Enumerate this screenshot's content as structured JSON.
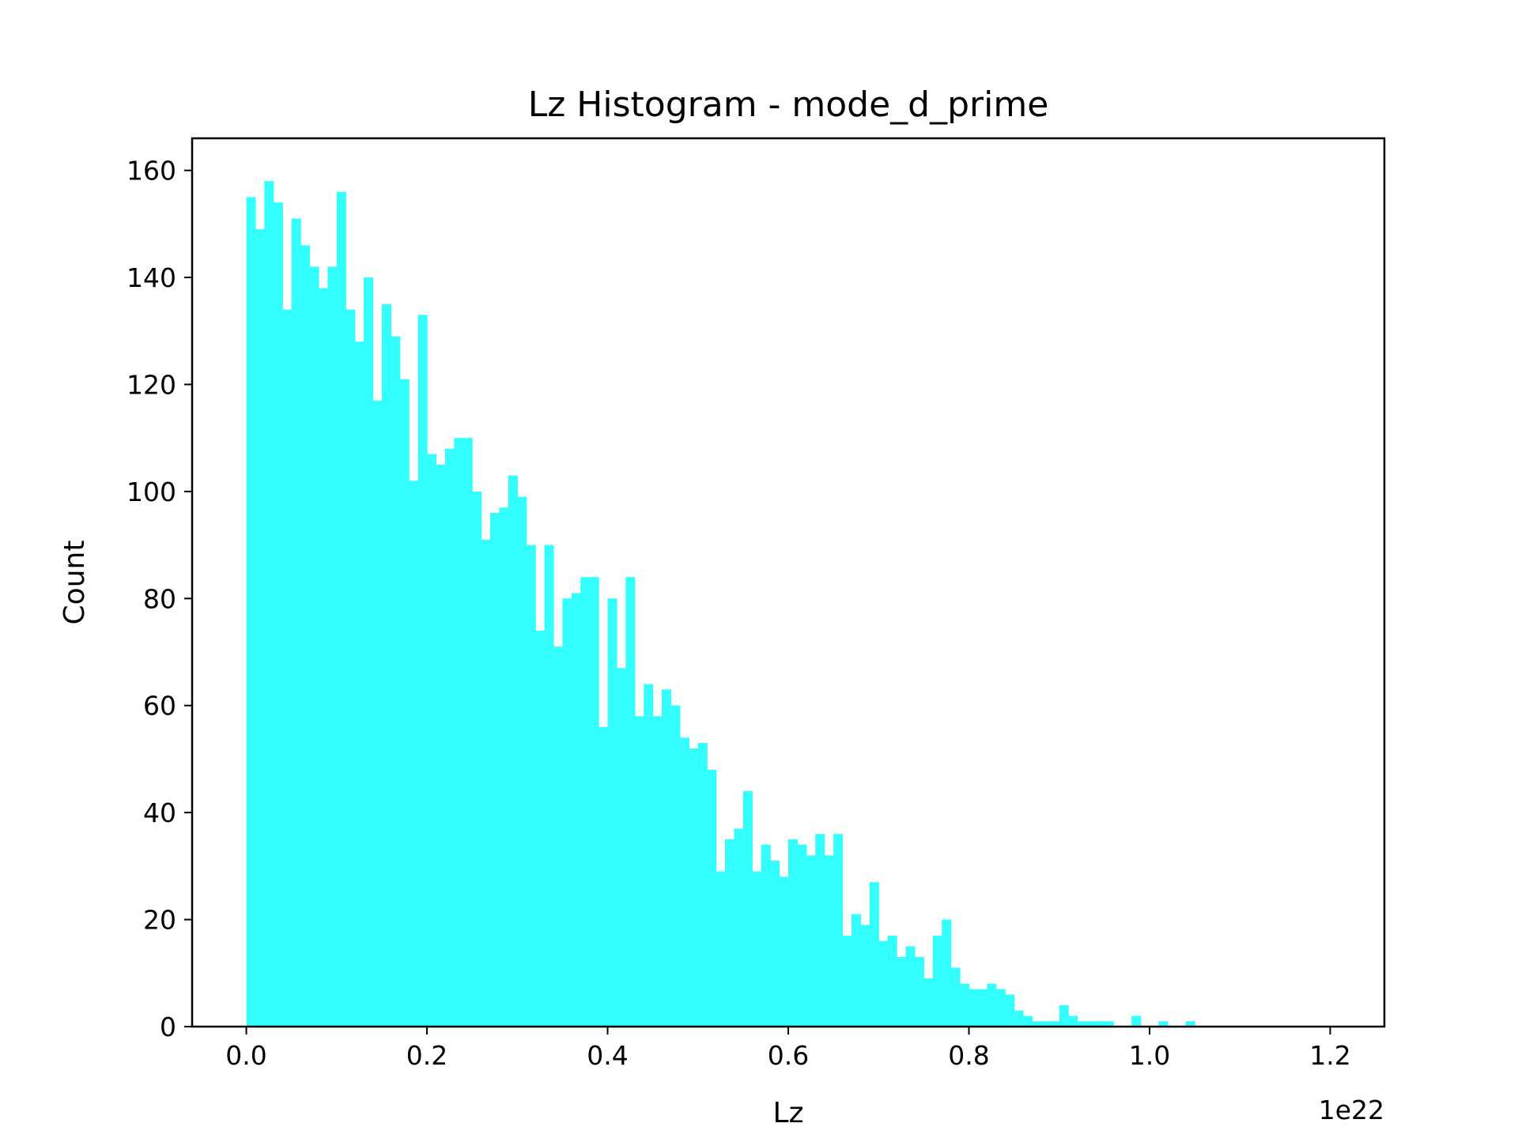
{
  "chart_data": {
    "type": "bar",
    "title": "Lz Histogram - mode_d_prime",
    "xlabel": "Lz",
    "ylabel": "Count",
    "x_offset_label": "1e22",
    "xlim": [
      -0.06,
      1.26
    ],
    "ylim": [
      0,
      166
    ],
    "xticks": [
      0.0,
      0.2,
      0.4,
      0.6,
      0.8,
      1.0,
      1.2
    ],
    "xtick_labels": [
      "0.0",
      "0.2",
      "0.4",
      "0.6",
      "0.8",
      "1.0",
      "1.2"
    ],
    "yticks": [
      0,
      20,
      40,
      60,
      80,
      100,
      120,
      140,
      160
    ],
    "ytick_labels": [
      "0",
      "20",
      "40",
      "60",
      "80",
      "100",
      "120",
      "140",
      "160"
    ],
    "grid": false,
    "legend": "none",
    "bar_color": "#33ffff",
    "bin_start": 0.0,
    "bin_width": 0.01,
    "values": [
      155,
      149,
      158,
      154,
      134,
      151,
      146,
      142,
      138,
      142,
      156,
      134,
      128,
      140,
      117,
      135,
      129,
      121,
      102,
      133,
      107,
      105,
      108,
      110,
      110,
      100,
      91,
      96,
      97,
      103,
      99,
      90,
      74,
      90,
      71,
      80,
      81,
      84,
      84,
      56,
      80,
      67,
      84,
      58,
      64,
      58,
      63,
      60,
      54,
      52,
      53,
      48,
      29,
      35,
      37,
      44,
      29,
      34,
      31,
      28,
      35,
      34,
      32,
      36,
      32,
      36,
      17,
      21,
      19,
      27,
      16,
      17,
      13,
      15,
      13,
      9,
      17,
      20,
      11,
      8,
      7,
      7,
      8,
      7,
      6,
      3,
      2,
      1,
      1,
      1,
      4,
      2,
      1,
      1,
      1,
      1,
      0,
      0,
      2,
      0,
      0,
      1,
      0,
      0,
      1,
      0,
      0,
      0,
      0,
      0
    ]
  }
}
